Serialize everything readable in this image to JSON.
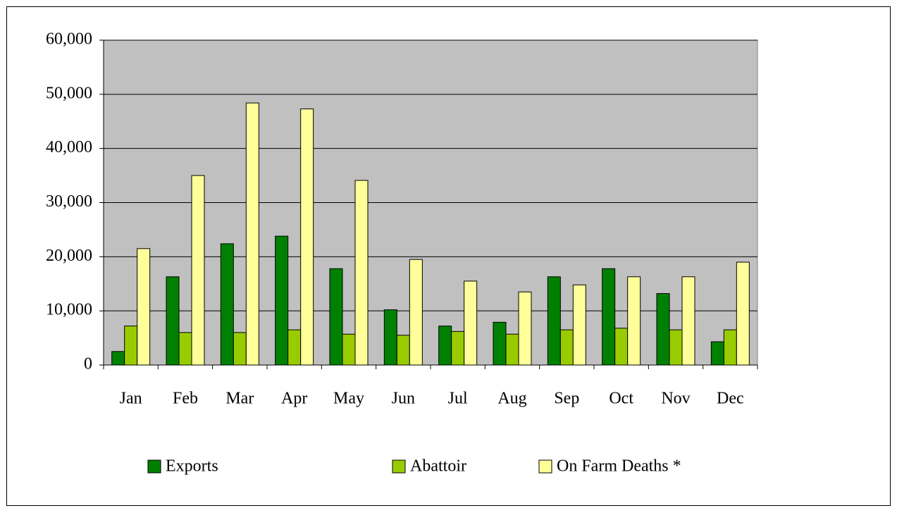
{
  "chart_data": {
    "type": "bar",
    "categories": [
      "Jan",
      "Feb",
      "Mar",
      "Apr",
      "May",
      "Jun",
      "Jul",
      "Aug",
      "Sep",
      "Oct",
      "Nov",
      "Dec"
    ],
    "series": [
      {
        "name": "Exports",
        "color": "#008000",
        "values": [
          2500,
          16300,
          22400,
          23800,
          17800,
          10200,
          7200,
          7900,
          16300,
          17800,
          13200,
          4300
        ]
      },
      {
        "name": "Abattoir",
        "color": "#99cc00",
        "values": [
          7200,
          6000,
          6000,
          6500,
          5700,
          5500,
          6200,
          5700,
          6500,
          6800,
          6500,
          6500
        ]
      },
      {
        "name": "On Farm Deaths *",
        "color": "#ffff99",
        "values": [
          21500,
          35000,
          48400,
          47300,
          34100,
          19500,
          15500,
          13500,
          14800,
          16300,
          16300,
          19000
        ]
      }
    ],
    "ylim": [
      0,
      60000
    ],
    "yticks": [
      0,
      {
        "value": 10000,
        "label": "10,000"
      },
      {
        "value": 20000,
        "label": "20,000"
      },
      {
        "value": 30000,
        "label": "30,000"
      },
      {
        "value": 40000,
        "label": "40,000"
      },
      {
        "value": 50000,
        "label": "50,000"
      },
      {
        "value": 60000,
        "label": "60,000"
      }
    ],
    "grid": true,
    "legend": "bottom"
  }
}
